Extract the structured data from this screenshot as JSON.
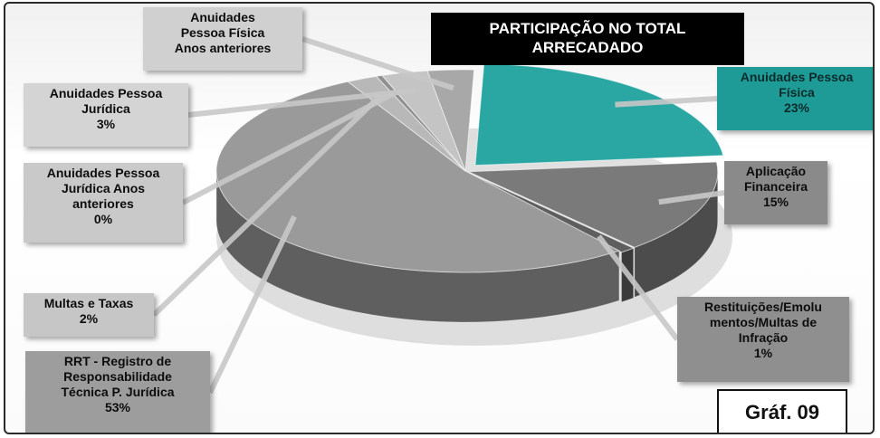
{
  "chart_data": {
    "type": "pie",
    "title": "PARTICIPAÇÃO  NO TOTAL\nARRECADADO",
    "badge": "Gráf. 09",
    "slices": [
      {
        "label": "Anuidades Pessoa\nFísica",
        "value": 23,
        "pct_label": "23%",
        "color": "#2aa7a3"
      },
      {
        "label": "Aplicação\nFinanceira",
        "value": 15,
        "pct_label": "15%",
        "color": "#7a7a7a"
      },
      {
        "label": "Restituições/Emolu\nmentos/Multas de\nInfração",
        "value": 1,
        "pct_label": "1%",
        "color": "#5e5e5e"
      },
      {
        "label": "RRT - Registro de\nResponsabilidade\nTécnica P. Jurídica",
        "value": 53,
        "pct_label": "53%",
        "color": "#9a9a9a"
      },
      {
        "label": "Multas e Taxas",
        "value": 2,
        "pct_label": "2%",
        "color": "#b8b8b8"
      },
      {
        "label": "Anuidades Pessoa\nJurídica Anos\nanteriores",
        "value": 0.4,
        "pct_label": "0%",
        "color": "#8f8f8f"
      },
      {
        "label": "Anuidades Pessoa\nJurídica",
        "value": 3,
        "pct_label": "3%",
        "color": "#c4c4c4"
      },
      {
        "label": "Anuidades\nPessoa Física\nAnos anteriores",
        "value": 3,
        "pct_label": "",
        "color": "#a8a8a8"
      }
    ]
  }
}
